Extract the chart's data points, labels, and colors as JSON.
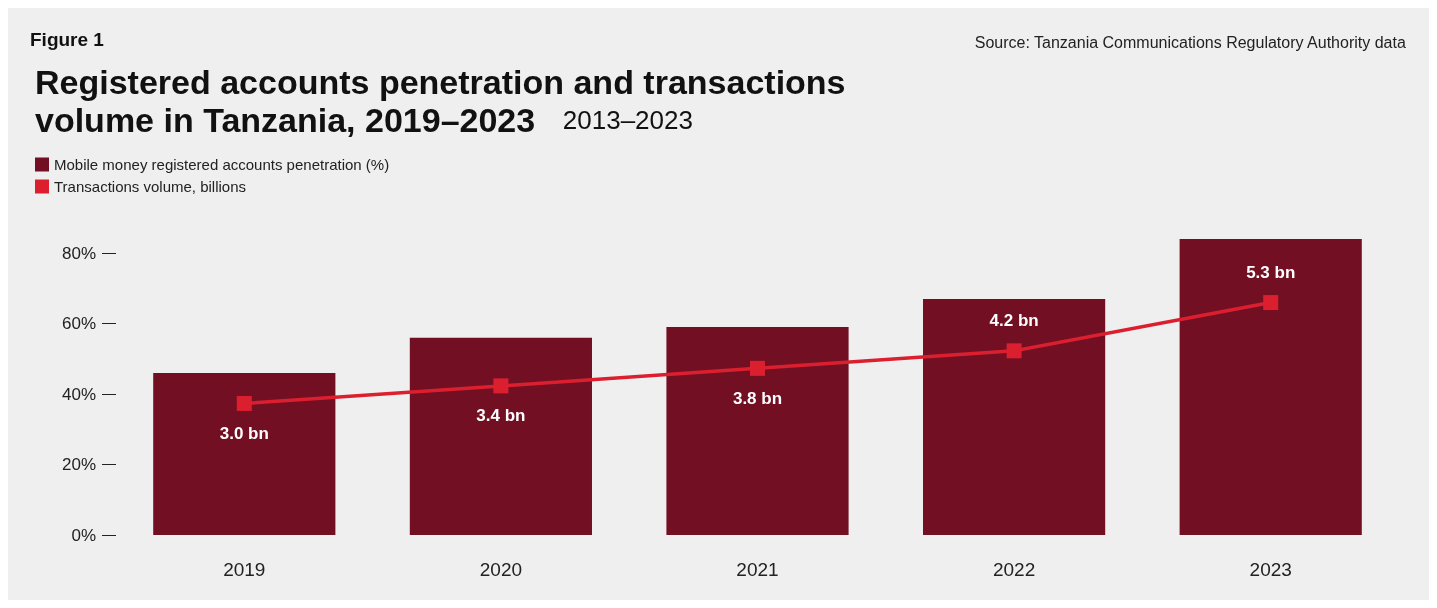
{
  "chart_data": {
    "type": "bar",
    "title": "Registered accounts penetration and transactions volume in Tanzania, 2019–2023",
    "subtitle": "2013–2023",
    "annotations": [
      "Figure 1",
      "Source: Tanzania Communications Regulatory Authority data"
    ],
    "categories": [
      "2019",
      "2020",
      "2021",
      "2022",
      "2023"
    ],
    "series": [
      {
        "name": "Mobile money registered accounts penetration (%)",
        "color": "#720f22",
        "values": [
          46,
          56,
          59,
          67,
          84
        ]
      },
      {
        "name": "Transactions volume, billions",
        "type": "line",
        "axis": "y2",
        "color": "#dc1f2f",
        "marker": "square",
        "values": [
          3.0,
          3.4,
          3.8,
          4.2,
          5.3
        ],
        "value_labels": [
          "3.0 bn",
          "3.4 bn",
          "3.8 bn",
          "4.2 bn",
          "5.3 bn"
        ]
      }
    ],
    "ylim": [
      0,
      84
    ],
    "yticks": [
      {
        "value": 0,
        "label": "0%"
      },
      {
        "value": 20,
        "label": "20%"
      },
      {
        "value": 40,
        "label": "40%"
      },
      {
        "value": 60,
        "label": "60%"
      },
      {
        "value": 80,
        "label": "80%"
      }
    ],
    "y2lim": [
      0,
      6.75
    ],
    "grid": false,
    "legend": "top left"
  }
}
